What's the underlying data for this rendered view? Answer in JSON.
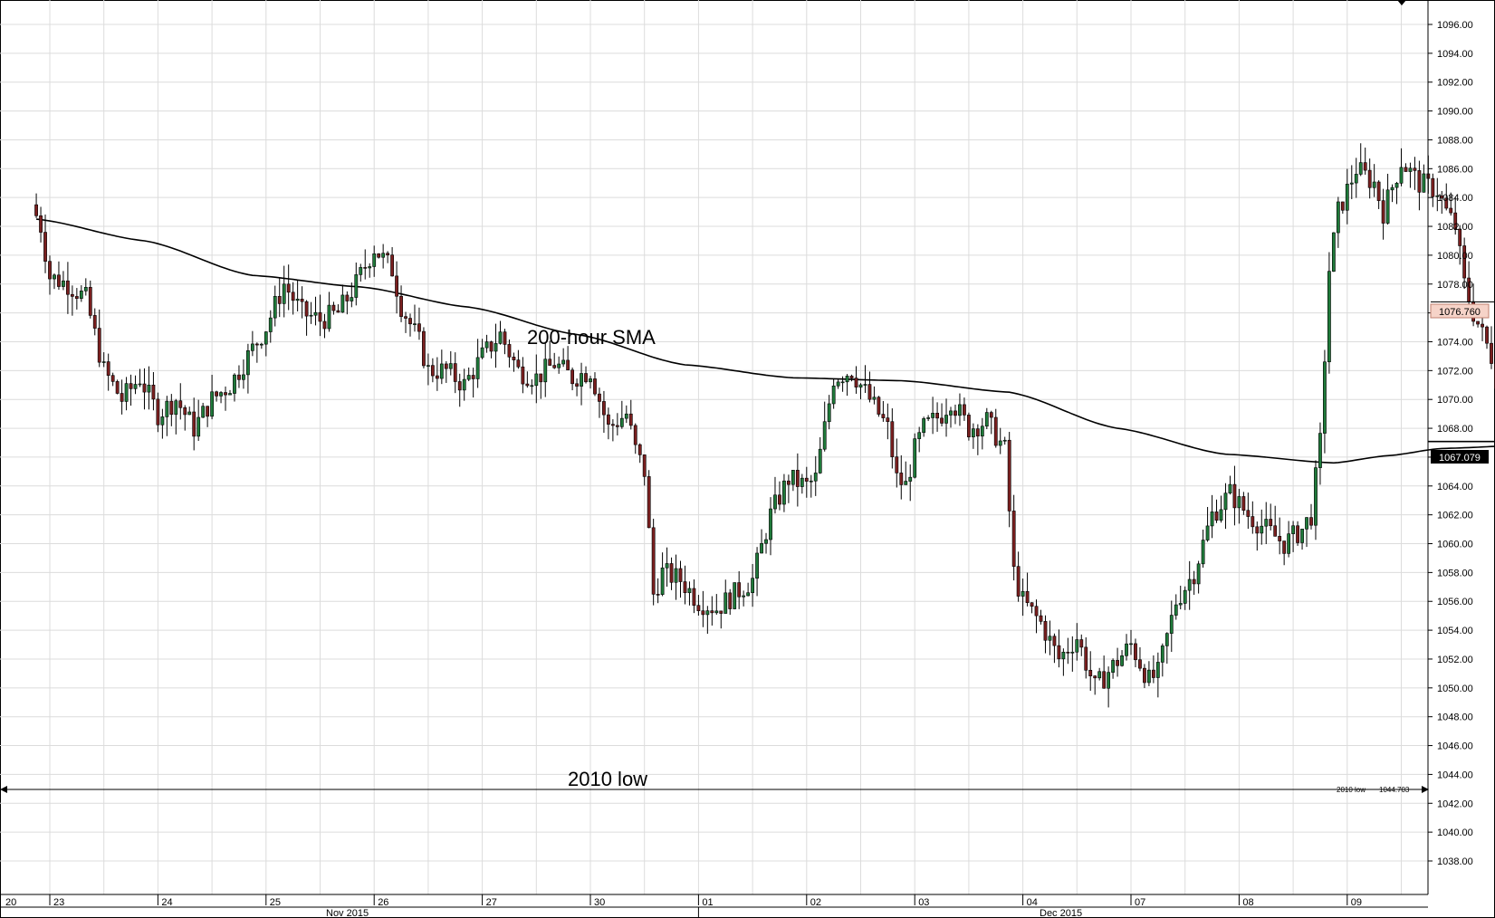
{
  "chart_data": {
    "type": "candlestick",
    "title": "",
    "xlabel": "",
    "ylabel": "",
    "ylim": [
      1037,
      1097
    ],
    "y_ticks": [
      1038,
      1040,
      1042,
      1044,
      1046,
      1048,
      1050,
      1052,
      1054,
      1056,
      1058,
      1060,
      1062,
      1064,
      1066,
      1068,
      1070,
      1072,
      1074,
      1076,
      1078,
      1080,
      1082,
      1084,
      1086,
      1088,
      1090,
      1092,
      1094,
      1096
    ],
    "y_tick_labels": [
      "1038.00",
      "1040.00",
      "1042.00",
      "1044.00",
      "1046.00",
      "1048.00",
      "1050.00",
      "1052.00",
      "1054.00",
      "1056.00",
      "1058.00",
      "1060.00",
      "1062.00",
      "1064.00",
      "1066.00",
      "1068.00",
      "1070.00",
      "1072.00",
      "1074.00",
      "1076.00",
      "1078.00",
      "1080.00",
      "1082.00",
      "1084.00",
      "1086.00",
      "1088.00",
      "1090.00",
      "1092.00",
      "1094.00",
      "1096.00"
    ],
    "days": [
      "20",
      "23",
      "24",
      "25",
      "26",
      "27",
      "30",
      "01",
      "02",
      "03",
      "04",
      "07",
      "08",
      "09"
    ],
    "months": [
      "Nov 2015",
      "Dec 2015"
    ],
    "hours_per_day": 24,
    "hours_first_day": 3,
    "annotations": {
      "sma_label": "200-hour SMA",
      "low_label": "2010 low"
    },
    "support": {
      "label": "2010 low",
      "value": 1044.703,
      "value_text": "1044.703"
    },
    "last_price": {
      "value": 1076.76,
      "text": "1076.760"
    },
    "sma_last": {
      "value": 1067.079,
      "text": "1067.079"
    },
    "sma": [
      [
        0,
        1082.5
      ],
      [
        24,
        1081.0
      ],
      [
        48,
        1078.6
      ],
      [
        72,
        1077.8
      ],
      [
        96,
        1076.4
      ],
      [
        120,
        1074.5
      ],
      [
        144,
        1072.4
      ],
      [
        168,
        1071.5
      ],
      [
        192,
        1071.3
      ],
      [
        216,
        1070.5
      ],
      [
        240,
        1068.0
      ],
      [
        264,
        1066.2
      ],
      [
        288,
        1065.6
      ],
      [
        300,
        1066.1
      ],
      [
        312,
        1066.6
      ],
      [
        336,
        1066.9
      ],
      [
        360,
        1067.0
      ],
      [
        384,
        1066.9
      ],
      [
        408,
        1067.079
      ]
    ],
    "price_path": [
      [
        0,
        1083.5
      ],
      [
        2,
        1082.0
      ],
      [
        4,
        1078.5
      ],
      [
        8,
        1078.0
      ],
      [
        12,
        1077.0
      ],
      [
        16,
        1072.0
      ],
      [
        20,
        1070.0
      ],
      [
        24,
        1071.5
      ],
      [
        28,
        1069.0
      ],
      [
        32,
        1070.0
      ],
      [
        36,
        1068.0
      ],
      [
        40,
        1070.0
      ],
      [
        44,
        1071.0
      ],
      [
        48,
        1073.0
      ],
      [
        52,
        1075.0
      ],
      [
        56,
        1078.0
      ],
      [
        60,
        1076.0
      ],
      [
        64,
        1075.5
      ],
      [
        68,
        1076.0
      ],
      [
        72,
        1078.0
      ],
      [
        76,
        1080.5
      ],
      [
        80,
        1079.0
      ],
      [
        82,
        1076.5
      ],
      [
        86,
        1074.0
      ],
      [
        88,
        1072.0
      ],
      [
        92,
        1072.0
      ],
      [
        96,
        1071.0
      ],
      [
        100,
        1073.0
      ],
      [
        104,
        1074.5
      ],
      [
        108,
        1072.0
      ],
      [
        112,
        1071.5
      ],
      [
        116,
        1072.5
      ],
      [
        120,
        1071.5
      ],
      [
        124,
        1072.0
      ],
      [
        128,
        1068.0
      ],
      [
        132,
        1069.0
      ],
      [
        134,
        1066.5
      ],
      [
        136,
        1065.0
      ],
      [
        138,
        1056.5
      ],
      [
        140,
        1058.0
      ],
      [
        144,
        1057.5
      ],
      [
        148,
        1056.0
      ],
      [
        152,
        1055.5
      ],
      [
        156,
        1056.5
      ],
      [
        160,
        1057.5
      ],
      [
        164,
        1062.0
      ],
      [
        168,
        1064.5
      ],
      [
        172,
        1064.0
      ],
      [
        174,
        1064.5
      ],
      [
        176,
        1068.0
      ],
      [
        178,
        1071.5
      ],
      [
        182,
        1072.0
      ],
      [
        186,
        1070.0
      ],
      [
        190,
        1068.0
      ],
      [
        192,
        1064.5
      ],
      [
        194,
        1064.0
      ],
      [
        196,
        1066.5
      ],
      [
        198,
        1068.0
      ],
      [
        202,
        1069.0
      ],
      [
        204,
        1070.0
      ],
      [
        208,
        1068.0
      ],
      [
        212,
        1068.5
      ],
      [
        216,
        1066.5
      ],
      [
        218,
        1058.0
      ],
      [
        220,
        1056.0
      ],
      [
        224,
        1054.5
      ],
      [
        228,
        1052.0
      ],
      [
        232,
        1053.5
      ],
      [
        236,
        1050.0
      ],
      [
        240,
        1051.5
      ],
      [
        244,
        1053.0
      ],
      [
        248,
        1050.5
      ],
      [
        250,
        1051.0
      ],
      [
        254,
        1056.0
      ],
      [
        258,
        1058.0
      ],
      [
        262,
        1062.0
      ],
      [
        266,
        1063.5
      ],
      [
        270,
        1062.0
      ],
      [
        274,
        1061.0
      ],
      [
        278,
        1060.0
      ],
      [
        282,
        1061.0
      ],
      [
        284,
        1062.0
      ],
      [
        286,
        1067.0
      ],
      [
        288,
        1079.0
      ],
      [
        290,
        1083.0
      ],
      [
        294,
        1086.0
      ],
      [
        298,
        1085.0
      ],
      [
        300,
        1083.0
      ],
      [
        304,
        1086.5
      ],
      [
        308,
        1085.0
      ],
      [
        312,
        1084.5
      ],
      [
        314,
        1083.0
      ],
      [
        316,
        1082.0
      ],
      [
        318,
        1078.0
      ],
      [
        320,
        1076.0
      ],
      [
        324,
        1073.0
      ],
      [
        326,
        1070.0
      ],
      [
        328,
        1068.5
      ],
      [
        332,
        1070.0
      ],
      [
        336,
        1073.0
      ],
      [
        340,
        1074.0
      ],
      [
        344,
        1072.5
      ],
      [
        346,
        1070.0
      ],
      [
        348,
        1072.0
      ],
      [
        352,
        1073.0
      ],
      [
        356,
        1075.0
      ],
      [
        360,
        1074.0
      ],
      [
        364,
        1076.0
      ],
      [
        368,
        1077.5
      ],
      [
        372,
        1077.0
      ],
      [
        374,
        1076.76
      ]
    ]
  }
}
